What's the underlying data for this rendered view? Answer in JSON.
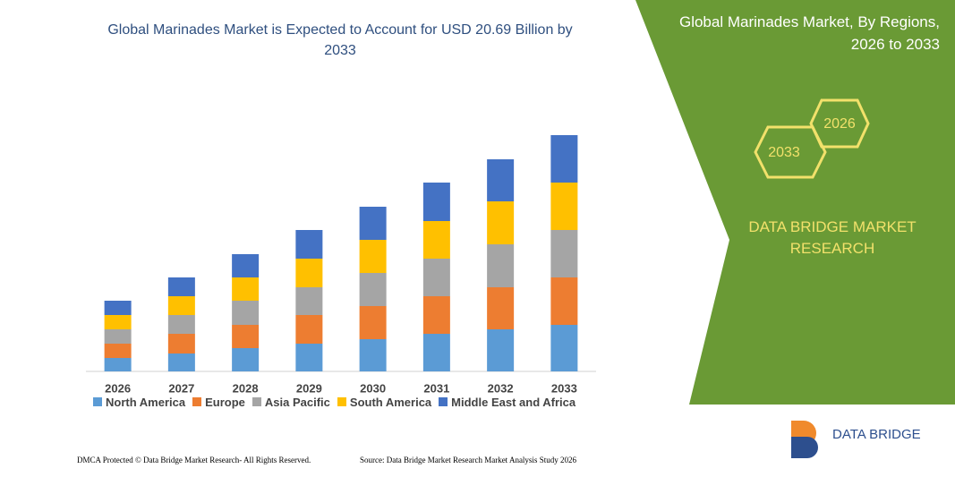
{
  "chart_data": {
    "type": "stacked-bar",
    "title": "Global Marinades Market is Expected to Account for USD 20.69 Billion by 2033",
    "categories": [
      "2026",
      "2027",
      "2028",
      "2029",
      "2030",
      "2031",
      "2032",
      "2033"
    ],
    "series": [
      {
        "name": "North America",
        "color": "#5b9bd5",
        "values": [
          15,
          20,
          26,
          31,
          36,
          42,
          47,
          52
        ]
      },
      {
        "name": "Europe",
        "color": "#ed7d31",
        "values": [
          16,
          22,
          26,
          32,
          37,
          42,
          47,
          53
        ]
      },
      {
        "name": "Asia Pacific",
        "color": "#a5a5a5",
        "values": [
          16,
          21,
          27,
          31,
          37,
          42,
          48,
          53
        ]
      },
      {
        "name": "South America",
        "color": "#ffc000",
        "values": [
          16,
          21,
          26,
          32,
          37,
          42,
          48,
          53
        ]
      },
      {
        "name": "Middle East and Africa",
        "color": "#4472c4",
        "values": [
          16,
          21,
          26,
          32,
          37,
          43,
          47,
          53
        ]
      }
    ],
    "ylim": [
      0,
      280
    ]
  },
  "sidebar": {
    "title": "Global Marinades Market, By Regions, 2026 to 2033",
    "hex_labels": [
      "2026",
      "2033"
    ],
    "brand": "DATA BRIDGE MARKET RESEARCH"
  },
  "logo": "DATA BRIDGE",
  "footer": {
    "left": "DMCA Protected © Data Bridge Market Research- All Rights Reserved.",
    "right": "Source: Data Bridge Market Research Market Analysis Study 2026"
  }
}
